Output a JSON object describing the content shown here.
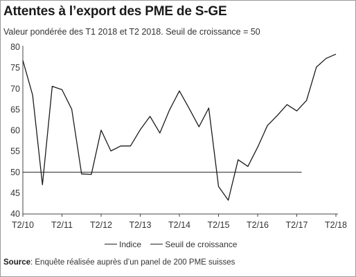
{
  "header": {
    "title": "Attentes à l’export des PME de S-GE",
    "subtitle": "Valeur pondérée des T1 2018 et T2 2018. Seuil de croissance = 50"
  },
  "footer": {
    "source_label": "Source",
    "source_text": ": Enquête réalisée auprès d’un panel de 200 PME suisses"
  },
  "chart_data": {
    "type": "line",
    "ylim": [
      40,
      80
    ],
    "yticks": [
      40,
      45,
      50,
      55,
      60,
      65,
      70,
      75,
      80
    ],
    "xticks": [
      {
        "label": "T2/10",
        "index": 0
      },
      {
        "label": "T2/11",
        "index": 4
      },
      {
        "label": "T2/12",
        "index": 8
      },
      {
        "label": "T2/13",
        "index": 12
      },
      {
        "label": "T2/14",
        "index": 16
      },
      {
        "label": "T2/15",
        "index": 20
      },
      {
        "label": "T2/16",
        "index": 24
      },
      {
        "label": "T2/17",
        "index": 28
      },
      {
        "label": "T2/18",
        "index": 32
      }
    ],
    "grid": false,
    "legend_position": "bottom",
    "series": [
      {
        "name": "Indice",
        "color": "#1a1a1a",
        "values": [
          76.8,
          68.5,
          47.0,
          70.6,
          69.8,
          65.1,
          49.6,
          49.5,
          60.1,
          55.1,
          56.3,
          56.3,
          60.2,
          63.4,
          59.4,
          65.0,
          69.5,
          65.3,
          60.9,
          65.4,
          46.6,
          43.3,
          53.0,
          51.4,
          56.0,
          61.2,
          63.6,
          66.2,
          64.7,
          67.2,
          75.2,
          77.3,
          78.3
        ]
      },
      {
        "name": "Seuil de croissance",
        "color": "#1a1a1a",
        "value": 50,
        "x_start_index": 0,
        "x_end_index": 28.5
      }
    ]
  }
}
